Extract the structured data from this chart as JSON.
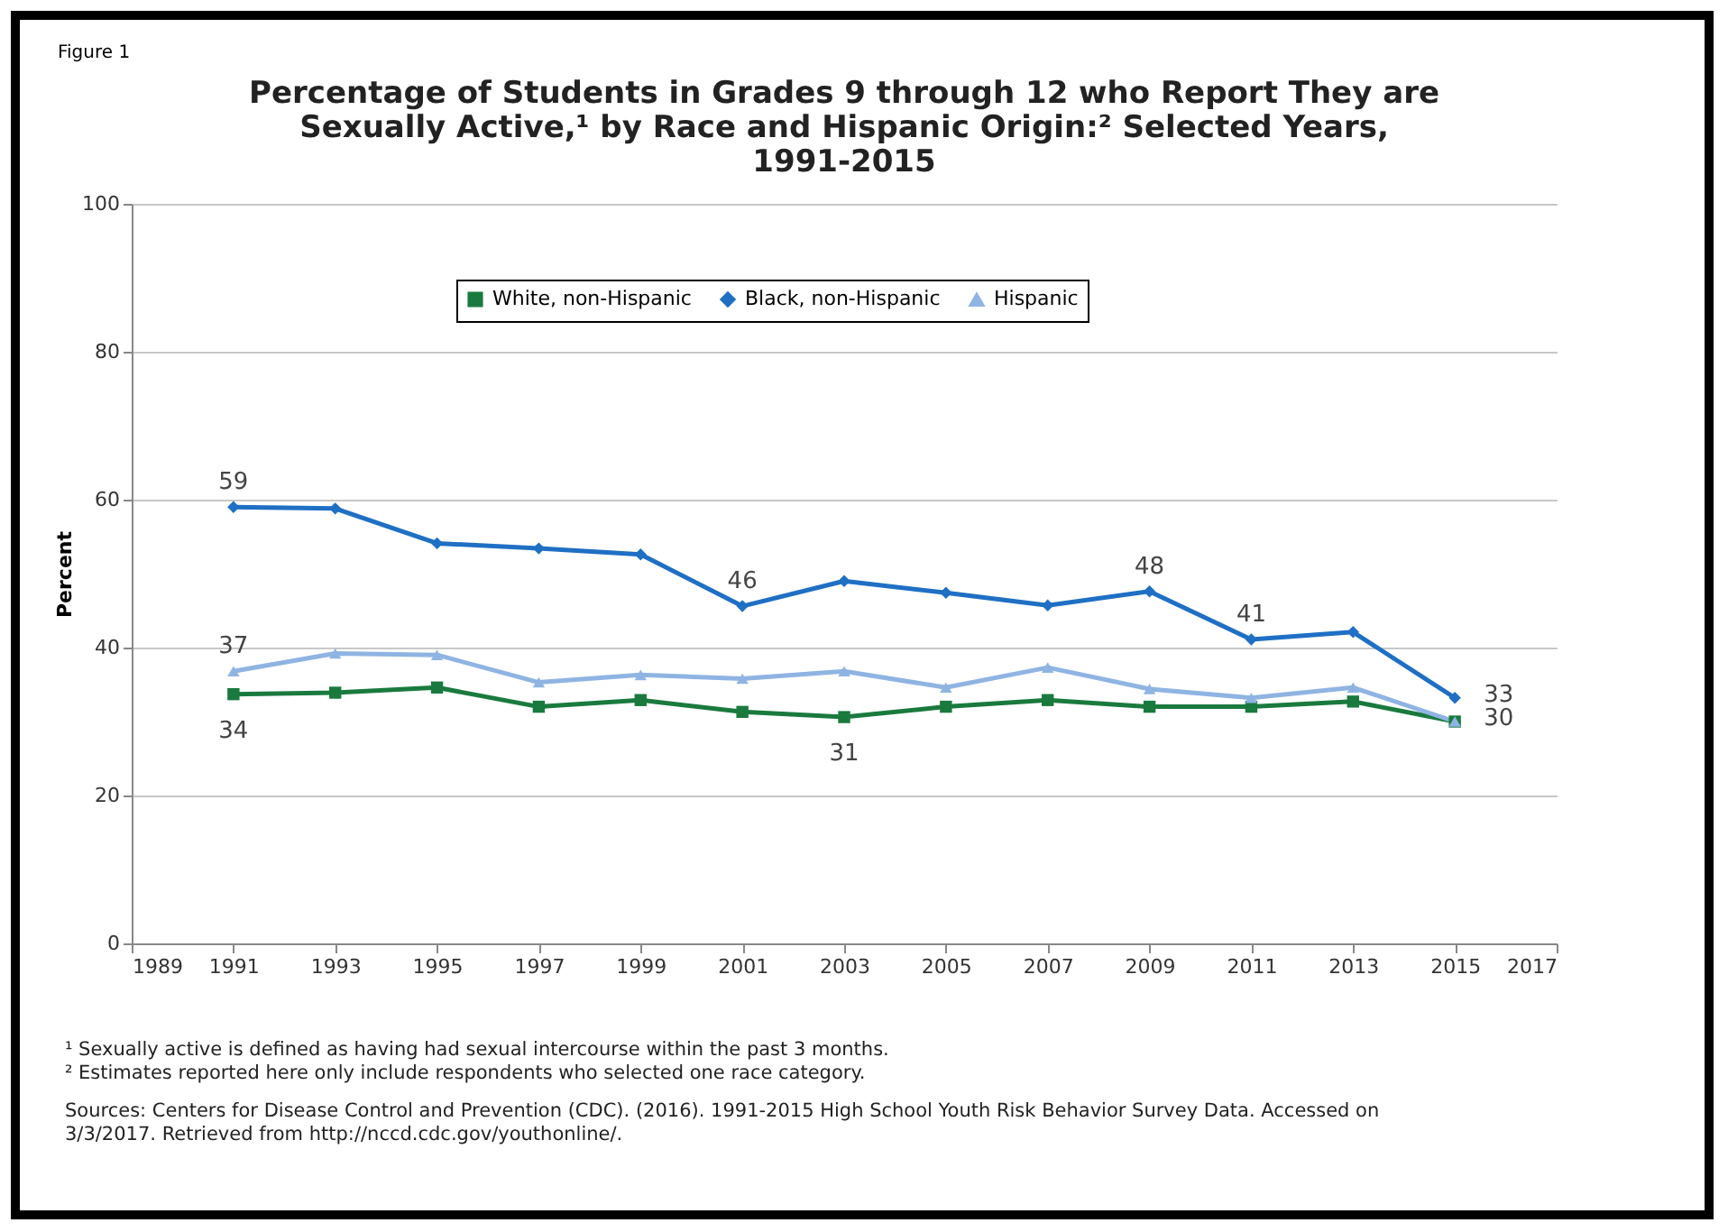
{
  "chart_data": {
    "type": "line",
    "title": "Percentage of Students in Grades 9 through 12 who Report They are\nSexually Active,¹ by Race and Hispanic Origin:² Selected Years,\n1991-2015",
    "ylabel": "Percent",
    "x": [
      1991,
      1993,
      1995,
      1997,
      1999,
      2001,
      2003,
      2005,
      2007,
      2009,
      2011,
      2013,
      2015
    ],
    "xlim": [
      1989,
      2017
    ],
    "xticks": [
      1989,
      1991,
      1993,
      1995,
      1997,
      1999,
      2001,
      2003,
      2005,
      2007,
      2009,
      2011,
      2013,
      2015,
      2017
    ],
    "ylim": [
      0,
      100
    ],
    "yticks": [
      0,
      20,
      40,
      60,
      80,
      100
    ],
    "grid": "y",
    "legend": "top",
    "series": [
      {
        "name": "White, non-Hispanic",
        "color": "#1a7a3e",
        "marker": "square",
        "values": [
          33.7,
          33.9,
          34.6,
          32.0,
          32.9,
          31.3,
          30.6,
          32.0,
          32.9,
          32.0,
          32.0,
          32.7,
          30.0
        ],
        "value_labels": [
          "34",
          null,
          null,
          null,
          null,
          null,
          "31",
          null,
          null,
          null,
          null,
          null,
          "30"
        ]
      },
      {
        "name": "Black, non-Hispanic",
        "color": "#1f6fc4",
        "marker": "diamond",
        "values": [
          59.0,
          58.8,
          54.1,
          53.4,
          52.6,
          45.6,
          49.0,
          47.4,
          45.7,
          47.6,
          41.1,
          42.1,
          33.2
        ],
        "value_labels": [
          "59",
          null,
          null,
          null,
          null,
          "46",
          null,
          null,
          null,
          "48",
          "41",
          null,
          "33"
        ]
      },
      {
        "name": "Hispanic",
        "color": "#8fb4e3",
        "marker": "triangle",
        "values": [
          36.8,
          39.2,
          39.0,
          35.3,
          36.3,
          35.8,
          36.8,
          34.6,
          37.3,
          34.4,
          33.2,
          34.6,
          30.0
        ],
        "value_labels": [
          "37",
          null,
          null,
          null,
          null,
          null,
          null,
          null,
          null,
          null,
          null,
          null,
          null
        ]
      }
    ],
    "annotations": [
      "Figure 1",
      "¹ Sexually active is defined as having had sexual intercourse within the past 3 months.",
      "² Estimates reported here only include respondents who selected one race category.",
      "Sources:  Centers for Disease Control and Prevention (CDC). (2016). 1991-2015 High School Youth Risk Behavior Survey Data. Accessed on 3/3/2017. Retrieved from http://nccd.cdc.gov/youthonline/."
    ]
  }
}
